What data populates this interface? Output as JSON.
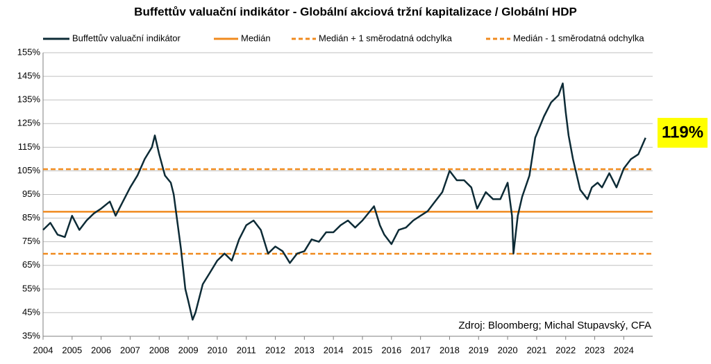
{
  "chart_data": {
    "type": "line",
    "title": "Buffettův valuační indikátor - Globální akciová tržní kapitalizace / Globální HDP",
    "x": [
      2004.0,
      2004.25,
      2004.5,
      2004.75,
      2005.0,
      2005.25,
      2005.5,
      2005.75,
      2006.0,
      2006.3,
      2006.5,
      2006.75,
      2007.0,
      2007.25,
      2007.5,
      2007.75,
      2007.85,
      2008.0,
      2008.2,
      2008.4,
      2008.5,
      2008.75,
      2008.9,
      2009.0,
      2009.15,
      2009.25,
      2009.5,
      2009.75,
      2010.0,
      2010.25,
      2010.5,
      2010.75,
      2011.0,
      2011.25,
      2011.5,
      2011.75,
      2012.0,
      2012.25,
      2012.5,
      2012.75,
      2013.0,
      2013.25,
      2013.5,
      2013.75,
      2014.0,
      2014.25,
      2014.5,
      2014.75,
      2015.0,
      2015.4,
      2015.6,
      2015.75,
      2016.0,
      2016.25,
      2016.5,
      2016.75,
      2017.0,
      2017.25,
      2017.5,
      2017.75,
      2018.0,
      2018.25,
      2018.5,
      2018.75,
      2018.95,
      2019.25,
      2019.5,
      2019.75,
      2020.0,
      2020.15,
      2020.2,
      2020.35,
      2020.5,
      2020.75,
      2020.95,
      2021.25,
      2021.5,
      2021.75,
      2021.9,
      2022.0,
      2022.1,
      2022.25,
      2022.5,
      2022.75,
      2022.9,
      2023.1,
      2023.25,
      2023.5,
      2023.75,
      2024.0,
      2024.25,
      2024.5,
      2024.75
    ],
    "series": [
      {
        "name": "Buffettův valuační indikátor",
        "color": "#0d2b36",
        "values": [
          80,
          83,
          78,
          77,
          86,
          80,
          84,
          87,
          89,
          92,
          86,
          92,
          98,
          103,
          110,
          115,
          120,
          112,
          103,
          100,
          95,
          72,
          55,
          50,
          42,
          45,
          57,
          62,
          67,
          70,
          67,
          76,
          82,
          84,
          80,
          70,
          73,
          71,
          66,
          70,
          71,
          76,
          75,
          79,
          79,
          82,
          84,
          81,
          84,
          90,
          82,
          78,
          74,
          80,
          81,
          84,
          86,
          88,
          92,
          96,
          105,
          101,
          101,
          98,
          89,
          96,
          93,
          93,
          100,
          86,
          70,
          86,
          94,
          103,
          119,
          128,
          134,
          137,
          142,
          130,
          120,
          110,
          97,
          93,
          98,
          100,
          98,
          104,
          98,
          106,
          110,
          112,
          119
        ]
      }
    ],
    "reference_lines": [
      {
        "name": "Medián",
        "color": "#f08a1e",
        "dashed": false,
        "value": 87.7
      },
      {
        "name": "Medián + 1 směrodatná odchylka",
        "color": "#f08a1e",
        "dashed": true,
        "value": 105.7
      },
      {
        "name": "Medián - 1 směrodatná odchylka",
        "color": "#f08a1e",
        "dashed": true,
        "value": 69.9
      }
    ],
    "xlim": [
      2004,
      2024.9
    ],
    "xticks": [
      2004,
      2005,
      2006,
      2007,
      2008,
      2009,
      2010,
      2011,
      2012,
      2013,
      2014,
      2015,
      2016,
      2017,
      2018,
      2019,
      2020,
      2021,
      2022,
      2023,
      2024
    ],
    "ylim": [
      35,
      155
    ],
    "yticks": [
      {
        "value": 35,
        "label": "35%"
      },
      {
        "value": 45,
        "label": "45%"
      },
      {
        "value": 55,
        "label": "55%"
      },
      {
        "value": 65,
        "label": "65%"
      },
      {
        "value": 75,
        "label": "75%"
      },
      {
        "value": 85,
        "label": "85%"
      },
      {
        "value": 95,
        "label": "95%"
      },
      {
        "value": 105,
        "label": "105%"
      },
      {
        "value": 115,
        "label": "115%"
      },
      {
        "value": 125,
        "label": "125%"
      },
      {
        "value": 135,
        "label": "135%"
      },
      {
        "value": 145,
        "label": "145%"
      },
      {
        "value": 155,
        "label": "155%"
      }
    ],
    "grid": true,
    "last_value_label": "119%",
    "source": "Zdroj: Bloomberg; Michal Stupavský, CFA"
  }
}
